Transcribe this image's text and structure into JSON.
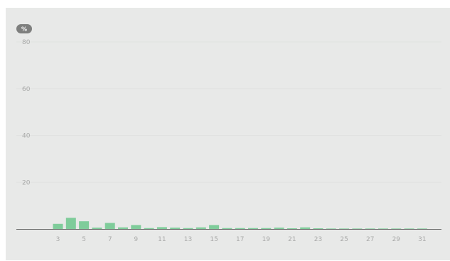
{
  "colors": {
    "background": "#e8e9e8",
    "bar": "#7fcc9a",
    "axis": "#6f706f",
    "grid": "#e1e2e1",
    "tick_text": "#a9aaa9",
    "badge": "#7e7f7e"
  },
  "chart_data": {
    "type": "bar",
    "unit_label": "%",
    "grid": true,
    "ylim": [
      0,
      80
    ],
    "y_ticks": [
      20,
      40,
      60,
      80
    ],
    "x_ticks": [
      3,
      5,
      7,
      9,
      11,
      13,
      15,
      17,
      19,
      21,
      23,
      25,
      27,
      29,
      31
    ],
    "categories": [
      3,
      4,
      5,
      6,
      7,
      8,
      9,
      10,
      11,
      12,
      13,
      14,
      15,
      16,
      17,
      18,
      19,
      20,
      21,
      22,
      23,
      24,
      25,
      26,
      27,
      28,
      29,
      30,
      31
    ],
    "values": [
      2.2,
      4.8,
      3.3,
      0.6,
      2.6,
      0.7,
      1.7,
      0.4,
      0.8,
      0.6,
      0.4,
      0.7,
      1.7,
      0.4,
      0.4,
      0.4,
      0.4,
      0.6,
      0.3,
      0.7,
      0.3,
      0.2,
      0.2,
      0.2,
      0.2,
      0.2,
      0.2,
      0.2,
      0.2
    ]
  }
}
